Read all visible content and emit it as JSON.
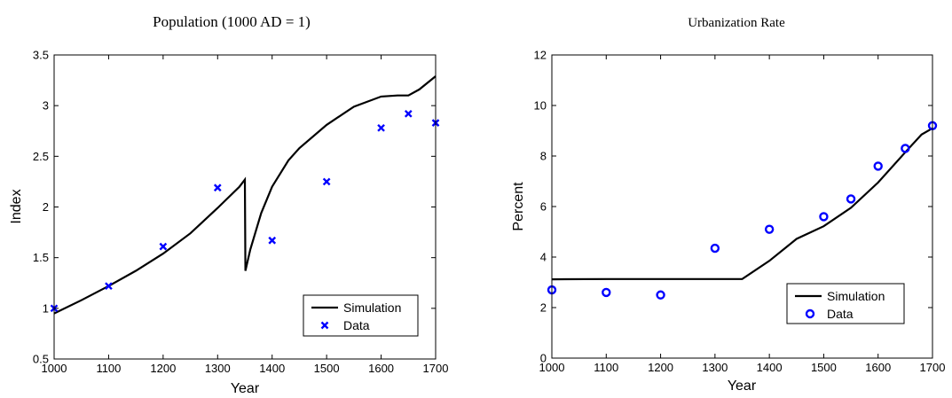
{
  "chart_data": [
    {
      "type": "line",
      "title": "Population (1000 AD = 1)",
      "xlabel": "Year",
      "ylabel": "Index",
      "xlim": [
        1000,
        1700
      ],
      "ylim": [
        0.5,
        3.5
      ],
      "x_ticks": [
        "1000",
        "1100",
        "1200",
        "1300",
        "1400",
        "1500",
        "1600",
        "1700"
      ],
      "y_ticks": [
        "0.5",
        "1",
        "1.5",
        "2",
        "2.5",
        "3",
        "3.5"
      ],
      "grid": false,
      "legend_position": "bottom-right",
      "series": [
        {
          "name": "Simulation",
          "kind": "line",
          "color": "#000000",
          "x": [
            1000,
            1050,
            1100,
            1150,
            1200,
            1250,
            1300,
            1340,
            1350,
            1351,
            1360,
            1380,
            1400,
            1430,
            1450,
            1500,
            1550,
            1600,
            1630,
            1650,
            1670,
            1700
          ],
          "y": [
            0.95,
            1.08,
            1.22,
            1.37,
            1.54,
            1.74,
            1.99,
            2.2,
            2.27,
            1.37,
            1.58,
            1.94,
            2.2,
            2.46,
            2.58,
            2.81,
            2.99,
            3.09,
            3.1,
            3.1,
            3.16,
            3.29
          ]
        },
        {
          "name": "Data",
          "kind": "scatter",
          "marker": "x",
          "color": "#0000ff",
          "x": [
            1000,
            1100,
            1200,
            1300,
            1400,
            1500,
            1600,
            1650,
            1700
          ],
          "y": [
            1.0,
            1.22,
            1.61,
            2.19,
            1.67,
            2.25,
            2.78,
            2.92,
            2.83
          ]
        }
      ]
    },
    {
      "type": "line",
      "title": "Urbanization Rate",
      "xlabel": "Year",
      "ylabel": "Percent",
      "xlim": [
        1000,
        1700
      ],
      "ylim": [
        0,
        12
      ],
      "x_ticks": [
        "1000",
        "1100",
        "1200",
        "1300",
        "1400",
        "1500",
        "1600",
        "1700"
      ],
      "y_ticks": [
        "0",
        "2",
        "4",
        "6",
        "8",
        "10",
        "12"
      ],
      "grid": false,
      "legend_position": "bottom-right",
      "series": [
        {
          "name": "Simulation",
          "kind": "line",
          "color": "#000000",
          "x": [
            1000,
            1100,
            1200,
            1300,
            1350,
            1400,
            1450,
            1500,
            1550,
            1600,
            1650,
            1680,
            1700
          ],
          "y": [
            3.12,
            3.13,
            3.13,
            3.13,
            3.13,
            3.85,
            4.72,
            5.22,
            5.95,
            6.95,
            8.15,
            8.85,
            9.1
          ]
        },
        {
          "name": "Data",
          "kind": "scatter",
          "marker": "o",
          "color": "#0000ff",
          "x": [
            1000,
            1100,
            1200,
            1300,
            1400,
            1500,
            1550,
            1600,
            1650,
            1700
          ],
          "y": [
            2.7,
            2.6,
            2.5,
            4.35,
            5.1,
            5.6,
            6.3,
            7.6,
            8.3,
            9.2
          ]
        }
      ]
    }
  ]
}
